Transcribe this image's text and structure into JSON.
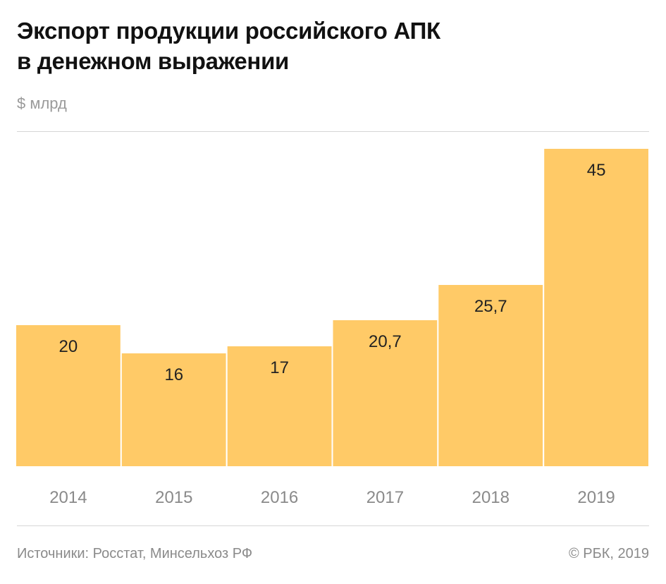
{
  "header": {
    "title_line1": "Экспорт продукции российского АПК",
    "title_line2": "в денежном выражении",
    "unit": "$ млрд"
  },
  "chart_data": {
    "type": "bar",
    "title": "Экспорт продукции российского АПК в денежном выражении",
    "ylabel": "$ млрд",
    "categories": [
      "2014",
      "2015",
      "2016",
      "2017",
      "2018",
      "2019"
    ],
    "values": [
      20,
      16,
      17,
      20.7,
      25.7,
      45
    ],
    "value_labels": [
      "20",
      "16",
      "17",
      "20,7",
      "25,7",
      "45"
    ],
    "ylim": [
      0,
      48
    ],
    "grid": false,
    "legend": "none",
    "bar_color": "#FFCA67"
  },
  "footer": {
    "source": "Источники: Росстат, Минсельхоз РФ",
    "copyright": "© РБК, 2019"
  }
}
